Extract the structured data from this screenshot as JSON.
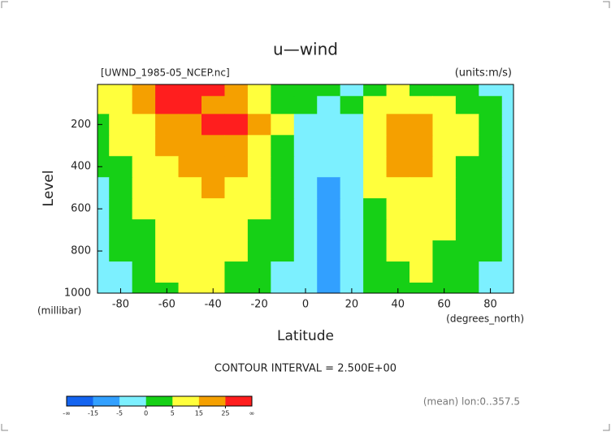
{
  "chart_data": {
    "type": "contour",
    "title": "u—wind",
    "dataset_label": "[UWND_1985-05_NCEP.nc]",
    "units_label": "(units:m/s)",
    "x_label": "Latitude",
    "x_units": "(degrees_north)",
    "y_label": "Level",
    "y_units": "(millibar)",
    "footer": "CONTOUR INTERVAL = 2.500E+00",
    "subset_label": "(mean) lon:0..357.5",
    "x": [
      -90,
      -80,
      -70,
      -60,
      -50,
      -40,
      -30,
      -20,
      -10,
      0,
      10,
      20,
      30,
      40,
      50,
      60,
      70,
      80,
      90
    ],
    "levels": [
      30,
      100,
      200,
      300,
      400,
      500,
      600,
      700,
      800,
      900,
      1000
    ],
    "values": [
      [
        8,
        14,
        22,
        30,
        32,
        28,
        22,
        12,
        4,
        2,
        0,
        -2,
        2,
        6,
        4,
        2,
        0,
        -2,
        -3
      ],
      [
        5,
        12,
        20,
        26,
        28,
        24,
        20,
        12,
        4,
        0,
        -3,
        0,
        6,
        12,
        12,
        8,
        4,
        0,
        -2
      ],
      [
        2,
        6,
        12,
        18,
        24,
        28,
        30,
        20,
        8,
        -2,
        -4,
        -2,
        12,
        22,
        22,
        14,
        6,
        2,
        -1
      ],
      [
        1,
        5,
        10,
        15,
        20,
        24,
        24,
        14,
        4,
        -3,
        -4,
        -2,
        10,
        20,
        20,
        12,
        5,
        1,
        -1
      ],
      [
        0,
        4,
        8,
        12,
        16,
        20,
        18,
        10,
        2,
        -3,
        -4,
        -3,
        8,
        16,
        15,
        10,
        4,
        1,
        -1
      ],
      [
        -1,
        3,
        6,
        10,
        14,
        16,
        13,
        7,
        1,
        -3,
        -6,
        -3,
        6,
        12,
        12,
        8,
        3,
        0,
        -1
      ],
      [
        -2,
        2,
        5,
        8,
        12,
        14,
        10,
        5,
        1,
        -3,
        -7,
        -3,
        4,
        10,
        10,
        6,
        3,
        0,
        -1
      ],
      [
        -2,
        1,
        4,
        7,
        10,
        10,
        7,
        3,
        0,
        -3,
        -7,
        -4,
        3,
        8,
        8,
        5,
        2,
        0,
        -1
      ],
      [
        -2,
        0,
        3,
        6,
        9,
        8,
        5,
        2,
        0,
        -3,
        -7,
        -4,
        2,
        6,
        6,
        4,
        2,
        0,
        -1
      ],
      [
        -2,
        -1,
        2,
        5,
        8,
        7,
        4,
        1,
        -1,
        -4,
        -7,
        -4,
        1,
        4,
        5,
        3,
        1,
        -1,
        -1
      ],
      [
        -2,
        -1,
        1,
        4,
        6,
        5,
        3,
        1,
        -2,
        -4,
        -6,
        -4,
        0,
        2,
        3,
        2,
        0,
        -1,
        -1
      ]
    ],
    "xlim": [
      -90,
      90
    ],
    "ylim": [
      1000,
      10
    ],
    "xticks": [
      -80,
      -60,
      -40,
      -20,
      0,
      20,
      40,
      60,
      80
    ],
    "yticks": [
      200,
      400,
      600,
      800,
      1000
    ],
    "colorbar": {
      "levels": [
        -15,
        -5,
        0,
        5,
        15,
        25
      ],
      "end_labels": [
        "-∞",
        "∞"
      ],
      "colors": [
        "#1464f0",
        "#32a0ff",
        "#7cf0ff",
        "#16d016",
        "#ffff3c",
        "#f5a000",
        "#ff1e1e"
      ]
    }
  }
}
